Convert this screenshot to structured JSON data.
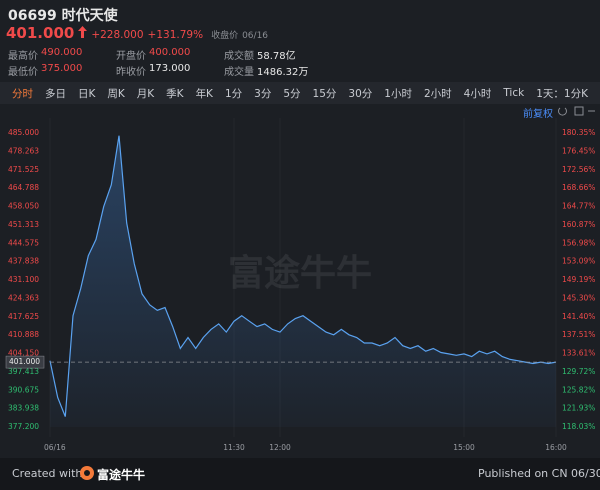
{
  "header": {
    "code": "06699",
    "name": "时代天使",
    "price": "401.000",
    "change": "+228.000",
    "change_pct": "+131.79%",
    "status": "收盘价",
    "date": "06/16"
  },
  "stats": [
    {
      "label": "最高价",
      "value": "490.000",
      "color": "#f04a4a"
    },
    {
      "label": "开盘价",
      "value": "400.000",
      "color": "#f04a4a"
    },
    {
      "label": "成交额",
      "value": "58.78亿",
      "color": "#e8e8e8"
    },
    {
      "label": "最低价",
      "value": "375.000",
      "color": "#f04a4a"
    },
    {
      "label": "昨收价",
      "value": "173.000",
      "color": "#e8e8e8"
    },
    {
      "label": "成交量",
      "value": "1486.32万",
      "color": "#e8e8e8"
    }
  ],
  "tabs": [
    "分时",
    "多日",
    "日K",
    "周K",
    "月K",
    "季K",
    "年K",
    "1分",
    "3分",
    "5分",
    "15分",
    "30分",
    "1小时",
    "2小时",
    "4小时",
    "Tick",
    "1天：1分K"
  ],
  "adjust": "前复权",
  "watermark": "富途牛牛",
  "footer": {
    "created": "Created with",
    "brand": "富途牛牛",
    "published": "Published on CN 06/30"
  },
  "chart_data": {
    "type": "line",
    "x": [
      0,
      5,
      10,
      15,
      20,
      25,
      30,
      35,
      40,
      45,
      50,
      55,
      60,
      65,
      70,
      75,
      80,
      85,
      90,
      95,
      100,
      105,
      110,
      115,
      120,
      125,
      130,
      135,
      140,
      145,
      150,
      155,
      160,
      165,
      170,
      175,
      180,
      185,
      190,
      195,
      200,
      205,
      210,
      215,
      220,
      225,
      230,
      235,
      240,
      245,
      250,
      255,
      260,
      265,
      270,
      275,
      280,
      285,
      290,
      295,
      300,
      305,
      310,
      315,
      320,
      325,
      330
    ],
    "series": [
      {
        "name": "06699",
        "color": "#5aa2f0",
        "values": [
          401.5,
          388,
          381,
          418,
          428,
          440,
          446,
          458,
          466,
          484,
          452,
          437,
          426,
          422,
          420,
          421,
          414,
          406,
          410,
          406,
          410,
          413,
          415,
          412,
          416,
          418,
          416,
          414,
          415,
          413,
          412,
          415,
          417,
          418,
          416,
          414,
          412,
          411,
          413,
          411,
          410,
          408,
          408,
          407,
          408,
          410,
          407,
          406,
          407,
          405,
          406,
          404.5,
          404,
          403.5,
          404,
          403,
          405,
          404,
          405,
          403,
          402,
          401.5,
          401,
          400.5,
          401,
          400.5,
          401
        ]
      }
    ],
    "xlim": [
      0,
      330
    ],
    "xticks": [
      {
        "value": 0,
        "label": "06/16"
      },
      {
        "value": 120,
        "label": "11:30"
      },
      {
        "value": 150,
        "label": "12:00"
      },
      {
        "value": 270,
        "label": "15:00"
      },
      {
        "value": 330,
        "label": "16:00"
      }
    ],
    "ylim": [
      377.2,
      485
    ],
    "yticks": [
      {
        "value": 485,
        "label": "485.000"
      },
      {
        "value": 478.263,
        "label": "478.263"
      },
      {
        "value": 471.525,
        "label": "471.525"
      },
      {
        "value": 464.788,
        "label": "464.788"
      },
      {
        "value": 458.05,
        "label": "458.050"
      },
      {
        "value": 451.313,
        "label": "451.313"
      },
      {
        "value": 444.575,
        "label": "444.575"
      },
      {
        "value": 437.838,
        "label": "437.838"
      },
      {
        "value": 431.1,
        "label": "431.100"
      },
      {
        "value": 424.363,
        "label": "424.363"
      },
      {
        "value": 417.625,
        "label": "417.625"
      },
      {
        "value": 410.888,
        "label": "410.888"
      },
      {
        "value": 404.15,
        "label": "404.150"
      },
      {
        "value": 397.413,
        "label": "397.413"
      },
      {
        "value": 390.675,
        "label": "390.675"
      },
      {
        "value": 383.938,
        "label": "383.938"
      },
      {
        "value": 377.2,
        "label": "377.200"
      }
    ],
    "y2lim": [
      118.03,
      180.35
    ],
    "y2ticks": [
      {
        "value": 180.35,
        "label": "180.35%"
      },
      {
        "value": 176.45,
        "label": "176.45%"
      },
      {
        "value": 172.56,
        "label": "172.56%"
      },
      {
        "value": 168.66,
        "label": "168.66%"
      },
      {
        "value": 164.77,
        "label": "164.77%"
      },
      {
        "value": 160.87,
        "label": "160.87%"
      },
      {
        "value": 156.98,
        "label": "156.98%"
      },
      {
        "value": 153.09,
        "label": "153.09%"
      },
      {
        "value": 149.19,
        "label": "149.19%"
      },
      {
        "value": 145.3,
        "label": "145.30%"
      },
      {
        "value": 141.4,
        "label": "141.40%"
      },
      {
        "value": 137.51,
        "label": "137.51%"
      },
      {
        "value": 133.61,
        "label": "133.61%"
      },
      {
        "value": 129.72,
        "label": "129.72%"
      },
      {
        "value": 125.82,
        "label": "125.82%"
      },
      {
        "value": 121.93,
        "label": "121.93%"
      },
      {
        "value": 118.03,
        "label": "118.03%"
      }
    ],
    "reference_line": {
      "value": 401,
      "label": "401.000"
    },
    "up_color": "#f04a4a",
    "down_color": "#2fbf71"
  }
}
